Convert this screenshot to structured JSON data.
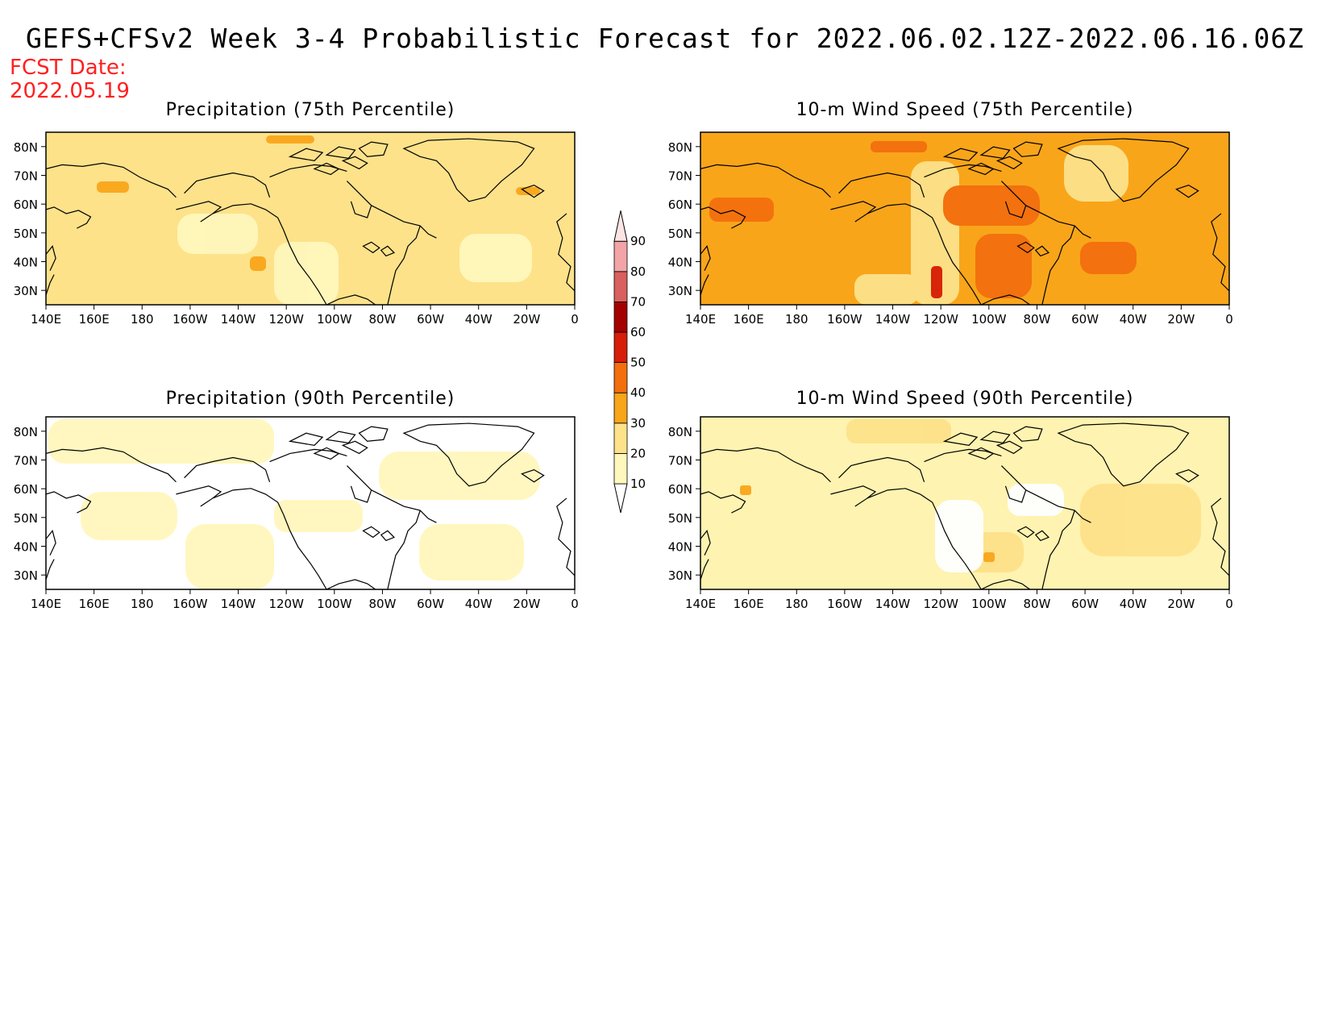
{
  "header": {
    "title": "GEFS+CFSv2 Week 3-4 Probabilistic Forecast for 2022.06.02.12Z-2022.06.16.06Z",
    "fcst_label": "FCST Date:",
    "fcst_date": "2022.05.19"
  },
  "panels": [
    {
      "title": "Precipitation (75th Percentile)",
      "base_color": "#fde28a"
    },
    {
      "title": "10-m Wind Speed (75th Percentile)",
      "base_color": "#f9a51a"
    },
    {
      "title": "Precipitation (90th Percentile)",
      "base_color": "#ffffff"
    },
    {
      "title": "10-m Wind Speed (90th Percentile)",
      "base_color": "#fef3b0"
    }
  ],
  "axes": {
    "x_ticks": [
      "140E",
      "160E",
      "180",
      "160W",
      "140W",
      "120W",
      "100W",
      "80W",
      "60W",
      "40W",
      "20W",
      "0"
    ],
    "y_ticks": [
      "80N",
      "70N",
      "60N",
      "50N",
      "40N",
      "30N"
    ],
    "lon_range": [
      140,
      360
    ],
    "lat_range": [
      25,
      85
    ]
  },
  "colorbar": {
    "levels": [
      "10",
      "20",
      "30",
      "40",
      "50",
      "60",
      "70",
      "80",
      "90"
    ],
    "colors": [
      "#fff7bc",
      "#fde28a",
      "#f9a51a",
      "#f36f0e",
      "#d71e08",
      "#a50000",
      "#d9605e",
      "#f2a4a6",
      "#fde4e4"
    ]
  },
  "colors": {
    "light_yellow": "#fff7bc",
    "yellow": "#fde28a",
    "orange": "#f9a51a",
    "dark_orange": "#f36f0e",
    "red": "#d71e08",
    "title_red": "#ff2020"
  }
}
